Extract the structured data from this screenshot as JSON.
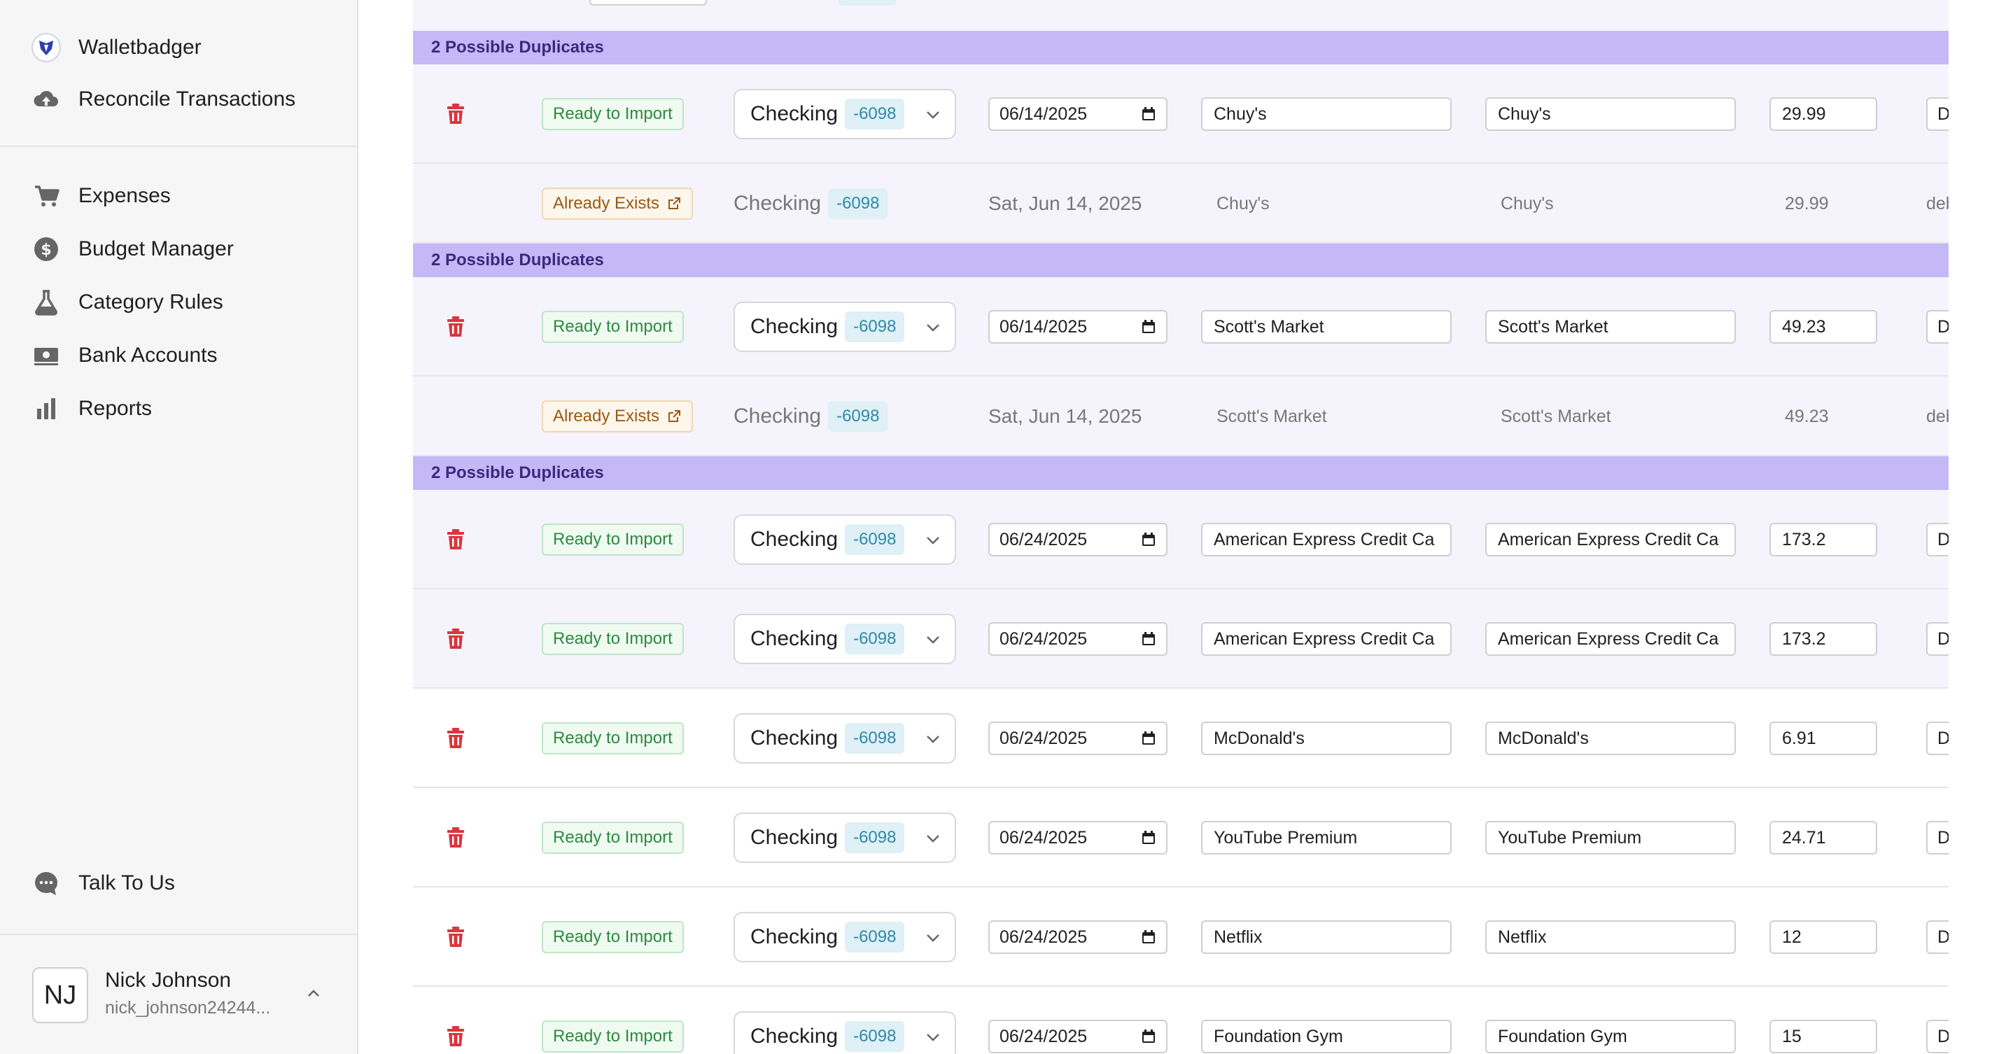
{
  "sidebar": {
    "brand": {
      "label": "Walletbadger",
      "icon": "badger-logo-icon"
    },
    "reconcile": {
      "label": "Reconcile Transactions",
      "icon": "cloud-upload-icon"
    },
    "nav": [
      {
        "label": "Expenses",
        "icon": "cart-icon"
      },
      {
        "label": "Budget Manager",
        "icon": "dollar-circle-icon"
      },
      {
        "label": "Category Rules",
        "icon": "flask-icon"
      },
      {
        "label": "Bank Accounts",
        "icon": "money-icon"
      },
      {
        "label": "Reports",
        "icon": "bar-chart-icon"
      }
    ],
    "talk": {
      "label": "Talk To Us",
      "icon": "chat-bubble-icon"
    },
    "user": {
      "initials": "NJ",
      "name": "Nick Johnson",
      "email": "nick_johnson24244..."
    }
  },
  "groups": [
    {
      "label": "2 Possible Duplicates"
    },
    {
      "label": "2 Possible Duplicates"
    },
    {
      "label": "2 Possible Duplicates"
    }
  ],
  "statuses": {
    "ready": "Ready to Import",
    "exists": "Already Exists"
  },
  "rows": [
    {
      "account": "Checking",
      "acct_num": "-6098",
      "date": "06/14/2025",
      "name": "Chuy's",
      "desc": "Chuy's",
      "amount": "29.99",
      "type": "Debi"
    },
    {
      "account": "Checking",
      "acct_num": "-6098",
      "date": "Sat, Jun 14, 2025",
      "name": "Chuy's",
      "desc": "Chuy's",
      "amount": "29.99",
      "type": "debit"
    },
    {
      "account": "Checking",
      "acct_num": "-6098",
      "date": "06/14/2025",
      "name": "Scott's Market",
      "desc": "Scott's Market",
      "amount": "49.23",
      "type": "Debi"
    },
    {
      "account": "Checking",
      "acct_num": "-6098",
      "date": "Sat, Jun 14, 2025",
      "name": "Scott's Market",
      "desc": "Scott's Market",
      "amount": "49.23",
      "type": "debit"
    },
    {
      "account": "Checking",
      "acct_num": "-6098",
      "date": "06/24/2025",
      "name": "American Express Credit Ca",
      "desc": "American Express Credit Ca",
      "amount": "173.2",
      "type": "Debi"
    },
    {
      "account": "Checking",
      "acct_num": "-6098",
      "date": "06/24/2025",
      "name": "American Express Credit Ca",
      "desc": "American Express Credit Ca",
      "amount": "173.2",
      "type": "Debi"
    },
    {
      "account": "Checking",
      "acct_num": "-6098",
      "date": "06/24/2025",
      "name": "McDonald's",
      "desc": "McDonald's",
      "amount": "6.91",
      "type": "Debi"
    },
    {
      "account": "Checking",
      "acct_num": "-6098",
      "date": "06/24/2025",
      "name": "YouTube Premium",
      "desc": "YouTube Premium",
      "amount": "24.71",
      "type": "Debi"
    },
    {
      "account": "Checking",
      "acct_num": "-6098",
      "date": "06/24/2025",
      "name": "Netflix",
      "desc": "Netflix",
      "amount": "12",
      "type": "Debi"
    },
    {
      "account": "Checking",
      "acct_num": "-6098",
      "date": "06/24/2025",
      "name": "Foundation Gym",
      "desc": "Foundation Gym",
      "amount": "15",
      "type": "Debi"
    }
  ],
  "colors": {
    "duplicate_band": "#c4b8f7",
    "ready_green": "#2d8a3f",
    "exists_orange": "#9a5a12",
    "trash_red": "#d9363e",
    "acct_badge": "#2e8aa8"
  }
}
